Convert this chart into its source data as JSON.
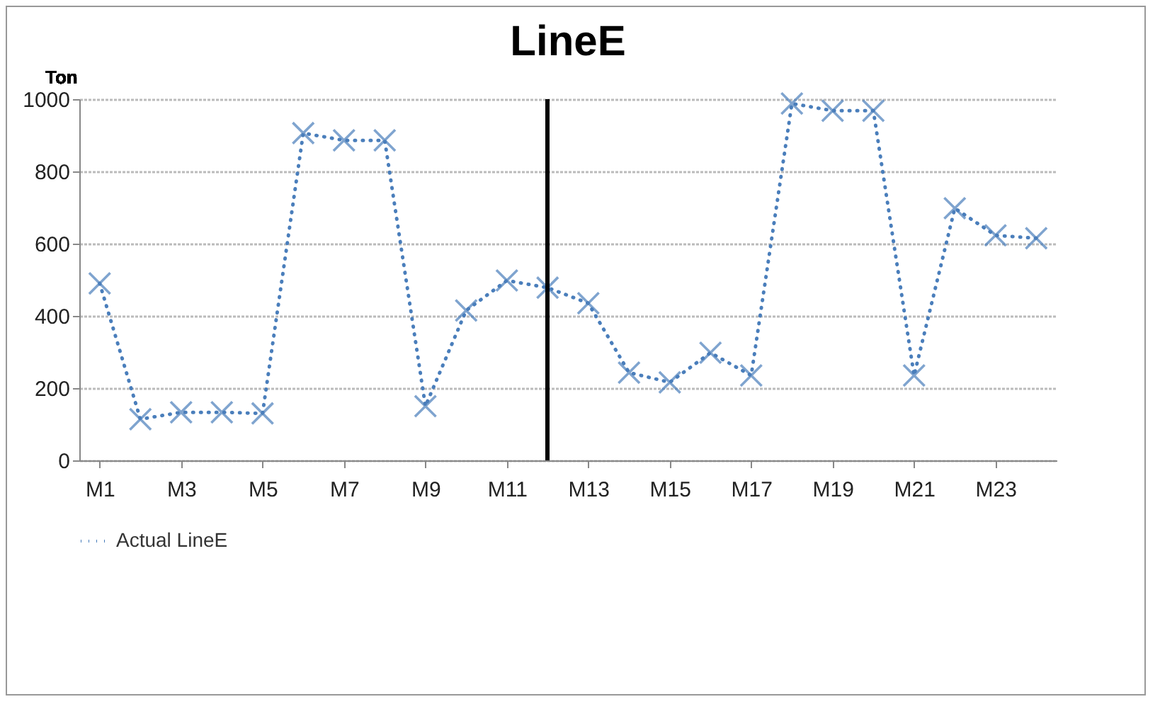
{
  "chart_data": {
    "type": "line",
    "title": "LineE",
    "ylabel": "Ton",
    "categories": [
      "M1",
      null,
      "M3",
      null,
      "M5",
      null,
      "M7",
      null,
      "M9",
      null,
      "M11",
      null,
      "M13",
      null,
      "M15",
      null,
      "M17",
      null,
      "M19",
      null,
      "M21",
      null,
      "M23",
      null
    ],
    "ylim": [
      0,
      1000
    ],
    "yticks": [
      0,
      200,
      400,
      600,
      800,
      1000
    ],
    "series": [
      {
        "name": "Actual LineE",
        "color": "#4a7ebb",
        "values": [
          490,
          114,
          133,
          133,
          130,
          906,
          886,
          886,
          150,
          415,
          498,
          478,
          435,
          243,
          216,
          298,
          235,
          988,
          968,
          968,
          235,
          698,
          623,
          615
        ]
      }
    ],
    "grid": "y",
    "legend": "bottom",
    "marker": "cross",
    "line_style": "dotted"
  }
}
